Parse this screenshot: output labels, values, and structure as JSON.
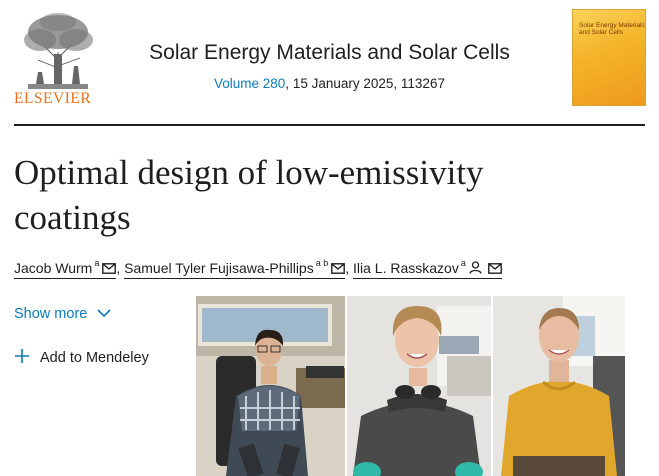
{
  "publisher": {
    "name": "ELSEVIER",
    "logo_icon": "elsevier-tree-logo-icon"
  },
  "journal": {
    "title": "Solar Energy Materials and Solar Cells",
    "volume_link": "Volume 280",
    "date_and_number": ", 15 January 2025, 113267",
    "cover_title": "Solar Energy Materials and Solar Cells"
  },
  "article": {
    "title": "Optimal design of low-emissivity coatings"
  },
  "authors": [
    {
      "name": "Jacob Wurm",
      "affiliations": "a",
      "icons": [
        "mail-icon"
      ]
    },
    {
      "name": "Samuel Tyler Fujisawa-Phillips",
      "affiliations": "a b",
      "icons": [
        "mail-icon"
      ]
    },
    {
      "name": "Ilia L. Rasskazov",
      "affiliations": "a",
      "icons": [
        "person-icon",
        "mail-icon"
      ]
    }
  ],
  "actions": {
    "show_more": "Show more",
    "add_mendeley": "Add to Mendeley"
  },
  "colors": {
    "link": "#0c7dbb",
    "elsevier_orange": "#e9711c",
    "text": "#1f1f1f"
  }
}
